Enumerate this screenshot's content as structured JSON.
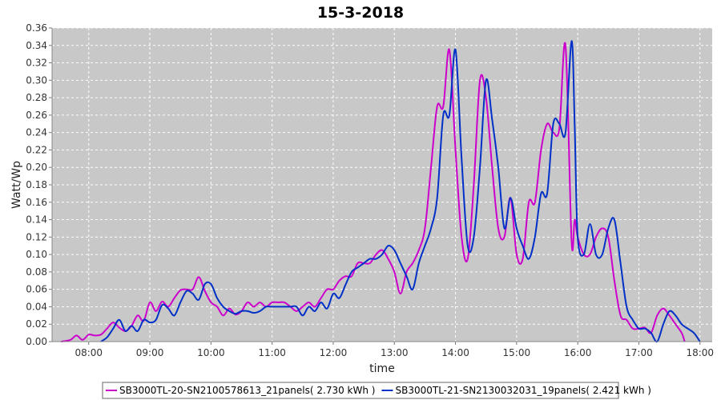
{
  "chart_data": {
    "type": "line",
    "title": "15-3-2018",
    "xlabel": "time",
    "ylabel": "Watt/Wp",
    "xlim": [
      7.4,
      18.2
    ],
    "ylim": [
      0,
      0.36
    ],
    "x_ticks": [
      "08:00",
      "09:00",
      "10:00",
      "11:00",
      "12:00",
      "13:00",
      "14:00",
      "15:00",
      "16:00",
      "17:00",
      "18:00"
    ],
    "y_ticks": [
      "0.00",
      "0.02",
      "0.04",
      "0.06",
      "0.08",
      "0.10",
      "0.12",
      "0.14",
      "0.16",
      "0.18",
      "0.20",
      "0.22",
      "0.24",
      "0.26",
      "0.28",
      "0.30",
      "0.32",
      "0.34",
      "0.36"
    ],
    "grid": true,
    "legend_position": "bottom",
    "plot_background": "#c8c8c8",
    "series": [
      {
        "name": "SB3000TL-20-SN2100578613_21panels( 2.730 kWh )",
        "color": "#cc00cc",
        "points": [
          [
            7.55,
            0.0
          ],
          [
            7.7,
            0.002
          ],
          [
            7.8,
            0.007
          ],
          [
            7.9,
            0.002
          ],
          [
            8.0,
            0.008
          ],
          [
            8.1,
            0.007
          ],
          [
            8.2,
            0.008
          ],
          [
            8.3,
            0.015
          ],
          [
            8.4,
            0.022
          ],
          [
            8.5,
            0.016
          ],
          [
            8.6,
            0.012
          ],
          [
            8.7,
            0.018
          ],
          [
            8.8,
            0.03
          ],
          [
            8.9,
            0.024
          ],
          [
            9.0,
            0.045
          ],
          [
            9.1,
            0.035
          ],
          [
            9.2,
            0.046
          ],
          [
            9.3,
            0.04
          ],
          [
            9.4,
            0.05
          ],
          [
            9.5,
            0.059
          ],
          [
            9.6,
            0.06
          ],
          [
            9.7,
            0.06
          ],
          [
            9.8,
            0.074
          ],
          [
            9.9,
            0.058
          ],
          [
            10.0,
            0.045
          ],
          [
            10.1,
            0.04
          ],
          [
            10.2,
            0.03
          ],
          [
            10.3,
            0.038
          ],
          [
            10.4,
            0.031
          ],
          [
            10.5,
            0.035
          ],
          [
            10.6,
            0.045
          ],
          [
            10.7,
            0.04
          ],
          [
            10.8,
            0.045
          ],
          [
            10.9,
            0.04
          ],
          [
            11.0,
            0.045
          ],
          [
            11.1,
            0.045
          ],
          [
            11.2,
            0.045
          ],
          [
            11.3,
            0.04
          ],
          [
            11.4,
            0.035
          ],
          [
            11.5,
            0.04
          ],
          [
            11.6,
            0.045
          ],
          [
            11.7,
            0.04
          ],
          [
            11.8,
            0.05
          ],
          [
            11.9,
            0.06
          ],
          [
            12.0,
            0.06
          ],
          [
            12.1,
            0.07
          ],
          [
            12.2,
            0.075
          ],
          [
            12.3,
            0.075
          ],
          [
            12.4,
            0.09
          ],
          [
            12.5,
            0.09
          ],
          [
            12.6,
            0.09
          ],
          [
            12.7,
            0.1
          ],
          [
            12.8,
            0.105
          ],
          [
            12.9,
            0.095
          ],
          [
            13.0,
            0.08
          ],
          [
            13.1,
            0.055
          ],
          [
            13.2,
            0.08
          ],
          [
            13.3,
            0.09
          ],
          [
            13.4,
            0.105
          ],
          [
            13.5,
            0.13
          ],
          [
            13.6,
            0.2
          ],
          [
            13.7,
            0.27
          ],
          [
            13.8,
            0.27
          ],
          [
            13.9,
            0.335
          ],
          [
            14.0,
            0.22
          ],
          [
            14.1,
            0.12
          ],
          [
            14.2,
            0.095
          ],
          [
            14.3,
            0.18
          ],
          [
            14.4,
            0.3
          ],
          [
            14.5,
            0.28
          ],
          [
            14.6,
            0.2
          ],
          [
            14.7,
            0.13
          ],
          [
            14.8,
            0.12
          ],
          [
            14.9,
            0.165
          ],
          [
            15.0,
            0.1
          ],
          [
            15.1,
            0.095
          ],
          [
            15.2,
            0.16
          ],
          [
            15.3,
            0.16
          ],
          [
            15.4,
            0.22
          ],
          [
            15.5,
            0.25
          ],
          [
            15.6,
            0.24
          ],
          [
            15.7,
            0.245
          ],
          [
            15.8,
            0.34
          ],
          [
            15.9,
            0.115
          ],
          [
            15.95,
            0.14
          ],
          [
            16.0,
            0.12
          ],
          [
            16.1,
            0.1
          ],
          [
            16.2,
            0.1
          ],
          [
            16.3,
            0.12
          ],
          [
            16.4,
            0.13
          ],
          [
            16.5,
            0.12
          ],
          [
            16.6,
            0.07
          ],
          [
            16.7,
            0.03
          ],
          [
            16.8,
            0.025
          ],
          [
            16.9,
            0.015
          ],
          [
            17.0,
            0.015
          ],
          [
            17.1,
            0.016
          ],
          [
            17.2,
            0.01
          ],
          [
            17.3,
            0.03
          ],
          [
            17.4,
            0.038
          ],
          [
            17.5,
            0.03
          ],
          [
            17.6,
            0.02
          ],
          [
            17.7,
            0.01
          ],
          [
            17.75,
            0.0
          ]
        ]
      },
      {
        "name": "SB3000TL-21-SN2130032031_19panels( 2.421 kWh )",
        "color": "#0030c8",
        "points": [
          [
            8.2,
            0.0
          ],
          [
            8.3,
            0.005
          ],
          [
            8.4,
            0.015
          ],
          [
            8.5,
            0.025
          ],
          [
            8.6,
            0.012
          ],
          [
            8.7,
            0.018
          ],
          [
            8.8,
            0.012
          ],
          [
            8.9,
            0.025
          ],
          [
            9.0,
            0.022
          ],
          [
            9.1,
            0.025
          ],
          [
            9.2,
            0.042
          ],
          [
            9.3,
            0.038
          ],
          [
            9.4,
            0.03
          ],
          [
            9.5,
            0.045
          ],
          [
            9.6,
            0.058
          ],
          [
            9.7,
            0.055
          ],
          [
            9.8,
            0.048
          ],
          [
            9.9,
            0.066
          ],
          [
            10.0,
            0.066
          ],
          [
            10.1,
            0.05
          ],
          [
            10.2,
            0.04
          ],
          [
            10.3,
            0.035
          ],
          [
            10.4,
            0.032
          ],
          [
            10.5,
            0.035
          ],
          [
            10.6,
            0.035
          ],
          [
            10.7,
            0.033
          ],
          [
            10.8,
            0.035
          ],
          [
            10.9,
            0.04
          ],
          [
            11.0,
            0.04
          ],
          [
            11.1,
            0.04
          ],
          [
            11.2,
            0.04
          ],
          [
            11.3,
            0.04
          ],
          [
            11.4,
            0.04
          ],
          [
            11.5,
            0.03
          ],
          [
            11.6,
            0.04
          ],
          [
            11.7,
            0.035
          ],
          [
            11.8,
            0.045
          ],
          [
            11.9,
            0.038
          ],
          [
            12.0,
            0.055
          ],
          [
            12.1,
            0.05
          ],
          [
            12.2,
            0.065
          ],
          [
            12.3,
            0.08
          ],
          [
            12.4,
            0.085
          ],
          [
            12.5,
            0.09
          ],
          [
            12.6,
            0.095
          ],
          [
            12.7,
            0.095
          ],
          [
            12.8,
            0.1
          ],
          [
            12.9,
            0.11
          ],
          [
            13.0,
            0.105
          ],
          [
            13.1,
            0.09
          ],
          [
            13.2,
            0.075
          ],
          [
            13.3,
            0.06
          ],
          [
            13.4,
            0.09
          ],
          [
            13.5,
            0.11
          ],
          [
            13.6,
            0.13
          ],
          [
            13.7,
            0.165
          ],
          [
            13.8,
            0.26
          ],
          [
            13.9,
            0.26
          ],
          [
            14.0,
            0.335
          ],
          [
            14.1,
            0.21
          ],
          [
            14.2,
            0.11
          ],
          [
            14.3,
            0.12
          ],
          [
            14.4,
            0.2
          ],
          [
            14.5,
            0.3
          ],
          [
            14.6,
            0.255
          ],
          [
            14.7,
            0.2
          ],
          [
            14.8,
            0.13
          ],
          [
            14.9,
            0.165
          ],
          [
            15.0,
            0.13
          ],
          [
            15.1,
            0.11
          ],
          [
            15.2,
            0.095
          ],
          [
            15.3,
            0.12
          ],
          [
            15.4,
            0.17
          ],
          [
            15.5,
            0.17
          ],
          [
            15.6,
            0.25
          ],
          [
            15.7,
            0.25
          ],
          [
            15.8,
            0.24
          ],
          [
            15.9,
            0.345
          ],
          [
            15.95,
            0.25
          ],
          [
            16.0,
            0.12
          ],
          [
            16.1,
            0.1
          ],
          [
            16.2,
            0.135
          ],
          [
            16.3,
            0.1
          ],
          [
            16.4,
            0.1
          ],
          [
            16.5,
            0.13
          ],
          [
            16.6,
            0.14
          ],
          [
            16.7,
            0.09
          ],
          [
            16.8,
            0.04
          ],
          [
            16.9,
            0.025
          ],
          [
            17.0,
            0.015
          ],
          [
            17.1,
            0.015
          ],
          [
            17.2,
            0.01
          ],
          [
            17.3,
            0.0
          ],
          [
            17.4,
            0.02
          ],
          [
            17.5,
            0.035
          ],
          [
            17.6,
            0.03
          ],
          [
            17.7,
            0.02
          ],
          [
            17.8,
            0.015
          ],
          [
            17.9,
            0.01
          ],
          [
            18.0,
            0.0
          ]
        ]
      }
    ]
  }
}
